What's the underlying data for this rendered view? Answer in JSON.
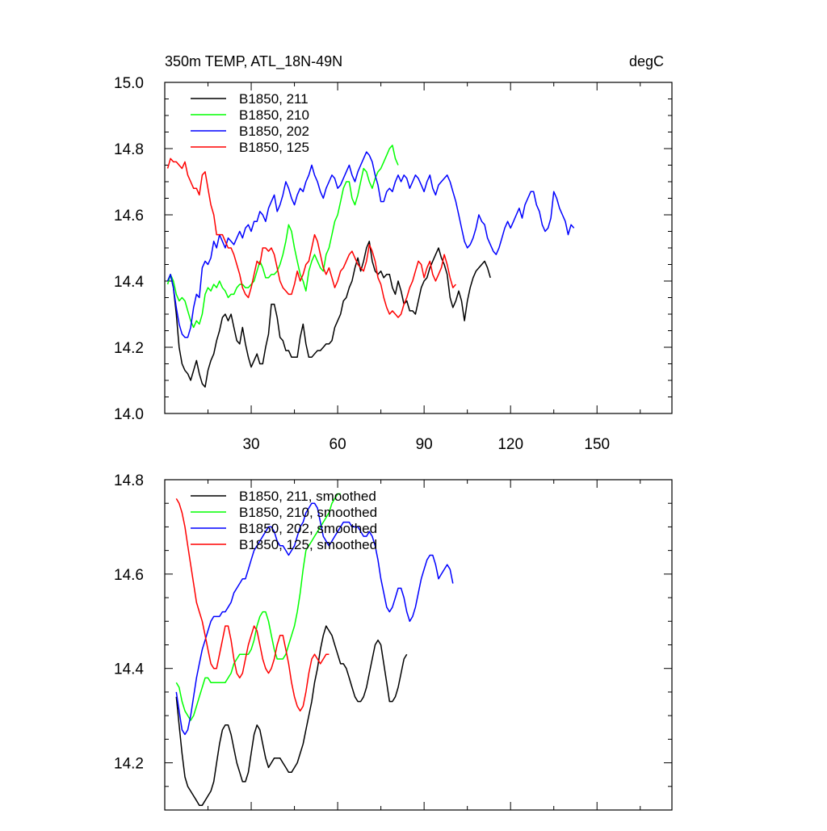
{
  "chart_data": [
    {
      "type": "line",
      "title_left": "350m TEMP, ATL_18N-49N",
      "title_right": "degC",
      "xlim": [
        0,
        176
      ],
      "ylim": [
        14.0,
        15.0
      ],
      "x_ticks": [
        30,
        60,
        90,
        120,
        150
      ],
      "x_tick_labels": [
        "30",
        "60",
        "90",
        "120",
        "150"
      ],
      "y_ticks": [
        14.0,
        14.2,
        14.4,
        14.6,
        14.8,
        15.0
      ],
      "y_tick_labels": [
        "14.0",
        "14.2",
        "14.4",
        "14.6",
        "14.8",
        "15.0"
      ],
      "legend_position": "top-left",
      "series": [
        {
          "name": "B1850, 211",
          "color": "#000000",
          "x_start": 1,
          "values": [
            14.4,
            14.42,
            14.38,
            14.3,
            14.2,
            14.15,
            14.13,
            14.12,
            14.1,
            14.13,
            14.16,
            14.12,
            14.09,
            14.08,
            14.13,
            14.16,
            14.18,
            14.22,
            14.25,
            14.29,
            14.3,
            14.28,
            14.3,
            14.26,
            14.22,
            14.21,
            14.26,
            14.21,
            14.17,
            14.14,
            14.16,
            14.18,
            14.15,
            14.15,
            14.2,
            14.24,
            14.33,
            14.33,
            14.29,
            14.23,
            14.22,
            14.19,
            14.19,
            14.17,
            14.17,
            14.17,
            14.23,
            14.27,
            14.21,
            14.17,
            14.17,
            14.18,
            14.19,
            14.19,
            14.2,
            14.21,
            14.21,
            14.22,
            14.26,
            14.28,
            14.3,
            14.34,
            14.35,
            14.38,
            14.4,
            14.44,
            14.47,
            14.43,
            14.46,
            14.5,
            14.52,
            14.46,
            14.43,
            14.42,
            14.43,
            14.41,
            14.42,
            14.42,
            14.38,
            14.36,
            14.4,
            14.37,
            14.33,
            14.34,
            14.31,
            14.31,
            14.3,
            14.34,
            14.38,
            14.4,
            14.41,
            14.44,
            14.46,
            14.48,
            14.5,
            14.47,
            14.45,
            14.42,
            14.35,
            14.32,
            14.34,
            14.37,
            14.34,
            14.28,
            14.34,
            14.38,
            14.41,
            14.43,
            14.44,
            14.45,
            14.46,
            14.44,
            14.41
          ]
        },
        {
          "name": "B1850, 210",
          "color": "#00ff00",
          "x_start": 1,
          "values": [
            14.39,
            14.42,
            14.4,
            14.36,
            14.34,
            14.35,
            14.34,
            14.31,
            14.28,
            14.26,
            14.28,
            14.27,
            14.3,
            14.36,
            14.38,
            14.37,
            14.39,
            14.38,
            14.4,
            14.38,
            14.37,
            14.35,
            14.36,
            14.36,
            14.38,
            14.39,
            14.39,
            14.38,
            14.38,
            14.39,
            14.4,
            14.43,
            14.46,
            14.44,
            14.41,
            14.41,
            14.42,
            14.42,
            14.43,
            14.45,
            14.48,
            14.52,
            14.57,
            14.55,
            14.5,
            14.46,
            14.42,
            14.4,
            14.37,
            14.43,
            14.46,
            14.48,
            14.46,
            14.44,
            14.43,
            14.48,
            14.5,
            14.54,
            14.58,
            14.6,
            14.64,
            14.68,
            14.7,
            14.7,
            14.65,
            14.63,
            14.66,
            14.7,
            14.74,
            14.73,
            14.7,
            14.68,
            14.71,
            14.73,
            14.74,
            14.76,
            14.78,
            14.8,
            14.81,
            14.77,
            14.75
          ]
        },
        {
          "name": "B1850, 202",
          "color": "#0000ff",
          "x_start": 1,
          "values": [
            14.4,
            14.42,
            14.38,
            14.32,
            14.27,
            14.24,
            14.23,
            14.23,
            14.26,
            14.32,
            14.36,
            14.35,
            14.44,
            14.46,
            14.45,
            14.47,
            14.52,
            14.5,
            14.54,
            14.52,
            14.5,
            14.53,
            14.52,
            14.51,
            14.53,
            14.55,
            14.53,
            14.56,
            14.57,
            14.55,
            14.58,
            14.58,
            14.61,
            14.6,
            14.58,
            14.62,
            14.64,
            14.66,
            14.61,
            14.63,
            14.66,
            14.7,
            14.68,
            14.65,
            14.63,
            14.66,
            14.68,
            14.67,
            14.7,
            14.72,
            14.75,
            14.72,
            14.7,
            14.67,
            14.65,
            14.68,
            14.7,
            14.72,
            14.71,
            14.68,
            14.69,
            14.71,
            14.73,
            14.75,
            14.72,
            14.7,
            14.73,
            14.75,
            14.77,
            14.79,
            14.78,
            14.76,
            14.72,
            14.69,
            14.64,
            14.64,
            14.67,
            14.68,
            14.67,
            14.7,
            14.72,
            14.7,
            14.72,
            14.71,
            14.68,
            14.7,
            14.72,
            14.71,
            14.69,
            14.67,
            14.7,
            14.72,
            14.68,
            14.66,
            14.69,
            14.7,
            14.71,
            14.72,
            14.7,
            14.67,
            14.64,
            14.6,
            14.56,
            14.52,
            14.5,
            14.51,
            14.53,
            14.56,
            14.6,
            14.58,
            14.57,
            14.53,
            14.51,
            14.49,
            14.48,
            14.5,
            14.53,
            14.56,
            14.58,
            14.56,
            14.58,
            14.6,
            14.62,
            14.59,
            14.63,
            14.65,
            14.67,
            14.67,
            14.63,
            14.61,
            14.57,
            14.55,
            14.56,
            14.59,
            14.67,
            14.65,
            14.62,
            14.6,
            14.58,
            14.54,
            14.57,
            14.56
          ]
        },
        {
          "name": "B1850, 125",
          "color": "#ff0000",
          "x_start": 1,
          "values": [
            14.74,
            14.77,
            14.76,
            14.76,
            14.75,
            14.74,
            14.76,
            14.72,
            14.7,
            14.68,
            14.68,
            14.66,
            14.72,
            14.73,
            14.68,
            14.63,
            14.6,
            14.54,
            14.54,
            14.54,
            14.52,
            14.5,
            14.5,
            14.48,
            14.45,
            14.42,
            14.38,
            14.36,
            14.35,
            14.38,
            14.42,
            14.46,
            14.45,
            14.5,
            14.5,
            14.49,
            14.5,
            14.48,
            14.44,
            14.4,
            14.38,
            14.37,
            14.36,
            14.36,
            14.39,
            14.43,
            14.4,
            14.42,
            14.45,
            14.46,
            14.5,
            14.54,
            14.52,
            14.48,
            14.44,
            14.42,
            14.44,
            14.41,
            14.38,
            14.4,
            14.43,
            14.44,
            14.46,
            14.48,
            14.49,
            14.47,
            14.45,
            14.44,
            14.43,
            14.46,
            14.51,
            14.49,
            14.46,
            14.41,
            14.39,
            14.35,
            14.32,
            14.3,
            14.31,
            14.3,
            14.29,
            14.3,
            14.33,
            14.35,
            14.38,
            14.4,
            14.43,
            14.46,
            14.45,
            14.41,
            14.44,
            14.46,
            14.42,
            14.4,
            14.42,
            14.44,
            14.48,
            14.45,
            14.41,
            14.38,
            14.39
          ]
        }
      ]
    },
    {
      "type": "line",
      "xlim": [
        0,
        176
      ],
      "ylim": [
        14.1,
        14.8
      ],
      "x_ticks": [
        30,
        60,
        90,
        120,
        150
      ],
      "y_ticks": [
        14.2,
        14.4,
        14.6,
        14.8
      ],
      "y_tick_labels": [
        "14.2",
        "14.4",
        "14.6",
        "14.8"
      ],
      "legend_position": "top-left",
      "series": [
        {
          "name": "B1850, 211, smoothed",
          "color": "#000000",
          "x_start": 4,
          "values": [
            14.34,
            14.28,
            14.22,
            14.17,
            14.15,
            14.14,
            14.13,
            14.12,
            14.11,
            14.11,
            14.12,
            14.13,
            14.14,
            14.16,
            14.2,
            14.24,
            14.27,
            14.28,
            14.28,
            14.26,
            14.23,
            14.2,
            14.18,
            14.16,
            14.16,
            14.18,
            14.22,
            14.26,
            14.28,
            14.27,
            14.24,
            14.21,
            14.19,
            14.2,
            14.21,
            14.21,
            14.21,
            14.2,
            14.19,
            14.18,
            14.18,
            14.19,
            14.2,
            14.22,
            14.24,
            14.27,
            14.3,
            14.33,
            14.37,
            14.4,
            14.44,
            14.47,
            14.49,
            14.48,
            14.47,
            14.45,
            14.43,
            14.41,
            14.41,
            14.4,
            14.38,
            14.36,
            14.34,
            14.33,
            14.33,
            14.34,
            14.36,
            14.39,
            14.42,
            14.45,
            14.46,
            14.45,
            14.41,
            14.37,
            14.33,
            14.33,
            14.34,
            14.36,
            14.39,
            14.42,
            14.43
          ]
        },
        {
          "name": "B1850, 210, smoothed",
          "color": "#00ff00",
          "x_start": 4,
          "values": [
            14.37,
            14.36,
            14.33,
            14.31,
            14.3,
            14.29,
            14.3,
            14.32,
            14.34,
            14.36,
            14.38,
            14.38,
            14.37,
            14.37,
            14.37,
            14.37,
            14.37,
            14.37,
            14.38,
            14.39,
            14.41,
            14.42,
            14.43,
            14.43,
            14.43,
            14.43,
            14.44,
            14.46,
            14.49,
            14.51,
            14.52,
            14.52,
            14.5,
            14.47,
            14.44,
            14.42,
            14.42,
            14.42,
            14.43,
            14.45,
            14.47,
            14.49,
            14.52,
            14.56,
            14.61,
            14.65,
            14.66,
            14.67,
            14.68,
            14.69,
            14.7,
            14.71,
            14.72,
            14.73,
            14.75,
            14.76,
            14.77,
            14.77
          ]
        },
        {
          "name": "B1850, 202, smoothed",
          "color": "#0000ff",
          "x_start": 4,
          "values": [
            14.35,
            14.31,
            14.27,
            14.26,
            14.27,
            14.3,
            14.34,
            14.38,
            14.41,
            14.44,
            14.46,
            14.48,
            14.5,
            14.51,
            14.51,
            14.51,
            14.52,
            14.52,
            14.53,
            14.54,
            14.56,
            14.57,
            14.58,
            14.59,
            14.59,
            14.61,
            14.63,
            14.65,
            14.66,
            14.67,
            14.68,
            14.69,
            14.7,
            14.7,
            14.69,
            14.67,
            14.66,
            14.66,
            14.65,
            14.64,
            14.65,
            14.66,
            14.68,
            14.7,
            14.71,
            14.73,
            14.74,
            14.75,
            14.75,
            14.74,
            14.71,
            14.68,
            14.67,
            14.66,
            14.67,
            14.68,
            14.69,
            14.7,
            14.71,
            14.71,
            14.71,
            14.7,
            14.7,
            14.7,
            14.69,
            14.68,
            14.68,
            14.69,
            14.68,
            14.66,
            14.63,
            14.59,
            14.56,
            14.53,
            14.52,
            14.53,
            14.55,
            14.57,
            14.57,
            14.55,
            14.52,
            14.5,
            14.51,
            14.53,
            14.56,
            14.59,
            14.61,
            14.63,
            14.64,
            14.64,
            14.62,
            14.59,
            14.6,
            14.61,
            14.62,
            14.61,
            14.58
          ]
        },
        {
          "name": "B1850, 125, smoothed",
          "color": "#ff0000",
          "x_start": 4,
          "values": [
            14.76,
            14.75,
            14.73,
            14.7,
            14.66,
            14.62,
            14.58,
            14.54,
            14.52,
            14.5,
            14.47,
            14.44,
            14.41,
            14.4,
            14.4,
            14.43,
            14.46,
            14.49,
            14.49,
            14.46,
            14.42,
            14.39,
            14.38,
            14.39,
            14.42,
            14.45,
            14.47,
            14.49,
            14.48,
            14.45,
            14.42,
            14.4,
            14.39,
            14.4,
            14.42,
            14.45,
            14.47,
            14.47,
            14.44,
            14.41,
            14.37,
            14.34,
            14.32,
            14.31,
            14.32,
            14.35,
            14.39,
            14.42,
            14.43,
            14.42,
            14.41,
            14.42,
            14.43,
            14.43
          ]
        }
      ]
    }
  ]
}
